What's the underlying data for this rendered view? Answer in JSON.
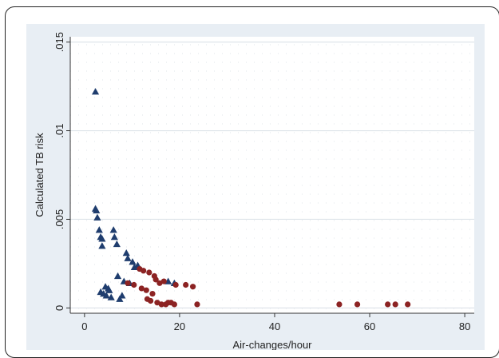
{
  "chart_data": {
    "type": "scatter",
    "title": "",
    "xlabel": "Air-changes/hour",
    "ylabel": "Calculated TB risk",
    "xlim": [
      -3,
      82
    ],
    "ylim": [
      -0.0003,
      0.0153
    ],
    "x_ticks": [
      0,
      20,
      40,
      60,
      80
    ],
    "x_tick_labels": [
      "0",
      "20",
      "40",
      "60",
      "80"
    ],
    "y_ticks": [
      0,
      0.005,
      0.01,
      0.015
    ],
    "y_tick_labels": [
      "0",
      ".005",
      ".01",
      ".015"
    ],
    "grid": true,
    "legend": "none",
    "colors": {
      "panel_bg": "#e8eef4",
      "plot_bg": "#ffffff",
      "grid": "#dfe5ea",
      "triangle_series": "#1f3d6e",
      "circle_series": "#8c2323"
    },
    "series": [
      {
        "marker": "triangle",
        "color": "#1f3d6e",
        "points": [
          [
            2.3,
            0.0122
          ],
          [
            2.3,
            0.0056
          ],
          [
            2.5,
            0.0055
          ],
          [
            2.7,
            0.0051
          ],
          [
            3.1,
            0.0044
          ],
          [
            3.4,
            0.004
          ],
          [
            3.7,
            0.0039
          ],
          [
            3.7,
            0.0035
          ],
          [
            3.4,
            0.0009
          ],
          [
            4.0,
            0.0008
          ],
          [
            4.4,
            0.0012
          ],
          [
            4.6,
            0.0007
          ],
          [
            5.0,
            0.0011
          ],
          [
            5.2,
            0.001
          ],
          [
            5.6,
            0.0006
          ],
          [
            6.1,
            0.0044
          ],
          [
            6.3,
            0.004
          ],
          [
            6.8,
            0.0036
          ],
          [
            7.0,
            0.0018
          ],
          [
            7.4,
            0.0005
          ],
          [
            7.9,
            0.0007
          ],
          [
            8.3,
            0.0015
          ],
          [
            8.8,
            0.0031
          ],
          [
            9.1,
            0.0028
          ],
          [
            9.5,
            0.0014
          ],
          [
            10.1,
            0.0026
          ],
          [
            10.5,
            0.0023
          ],
          [
            11.2,
            0.0024
          ],
          [
            17.6,
            0.0015
          ],
          [
            18.9,
            0.0014
          ]
        ]
      },
      {
        "marker": "circle",
        "color": "#8c2323",
        "points": [
          [
            9.1,
            0.0014
          ],
          [
            10.4,
            0.0013
          ],
          [
            11.6,
            0.0022
          ],
          [
            12.0,
            0.0011
          ],
          [
            12.4,
            0.0021
          ],
          [
            13.0,
            0.001
          ],
          [
            13.6,
            0.002
          ],
          [
            13.2,
            0.0005
          ],
          [
            13.9,
            0.0004
          ],
          [
            14.3,
            0.0008
          ],
          [
            14.7,
            0.0018
          ],
          [
            15.0,
            0.0016
          ],
          [
            15.3,
            0.0003
          ],
          [
            15.8,
            0.0014
          ],
          [
            16.2,
            0.0002
          ],
          [
            16.7,
            0.0015
          ],
          [
            17.1,
            0.0002
          ],
          [
            17.6,
            0.0003
          ],
          [
            18.2,
            0.0003
          ],
          [
            19.2,
            0.0013
          ],
          [
            18.9,
            0.0002
          ],
          [
            21.3,
            0.0013
          ],
          [
            22.8,
            0.0012
          ],
          [
            23.7,
            0.0002
          ],
          [
            53.6,
            0.0002
          ],
          [
            57.4,
            0.0002
          ],
          [
            63.8,
            0.0002
          ],
          [
            65.4,
            0.0002
          ],
          [
            68.0,
            0.0002
          ]
        ]
      }
    ]
  }
}
